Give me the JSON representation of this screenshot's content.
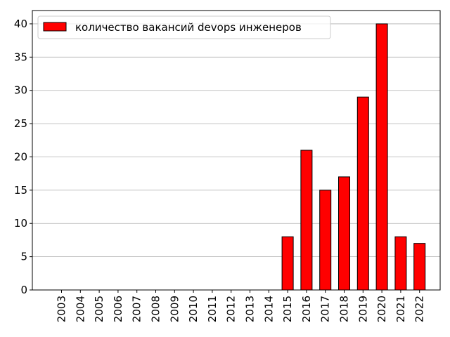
{
  "chart_data": {
    "type": "bar",
    "categories": [
      "2003",
      "2004",
      "2005",
      "2006",
      "2007",
      "2008",
      "2009",
      "2010",
      "2011",
      "2012",
      "2013",
      "2014",
      "2015",
      "2016",
      "2017",
      "2018",
      "2019",
      "2020",
      "2021",
      "2022"
    ],
    "series": [
      {
        "name": "количество вакансий devops инженеров",
        "values": [
          0,
          0,
          0,
          0,
          0,
          0,
          0,
          0,
          0,
          0,
          0,
          0,
          8,
          21,
          15,
          17,
          29,
          40,
          8,
          7
        ],
        "color": "#ff0000",
        "edgecolor": "#000000"
      }
    ],
    "title": "",
    "xlabel": "",
    "ylabel": "",
    "ylim": [
      0,
      42
    ],
    "yticks": [
      0,
      5,
      10,
      15,
      20,
      25,
      30,
      35,
      40
    ],
    "grid": "horizontal",
    "legend_position": "upper-left"
  }
}
